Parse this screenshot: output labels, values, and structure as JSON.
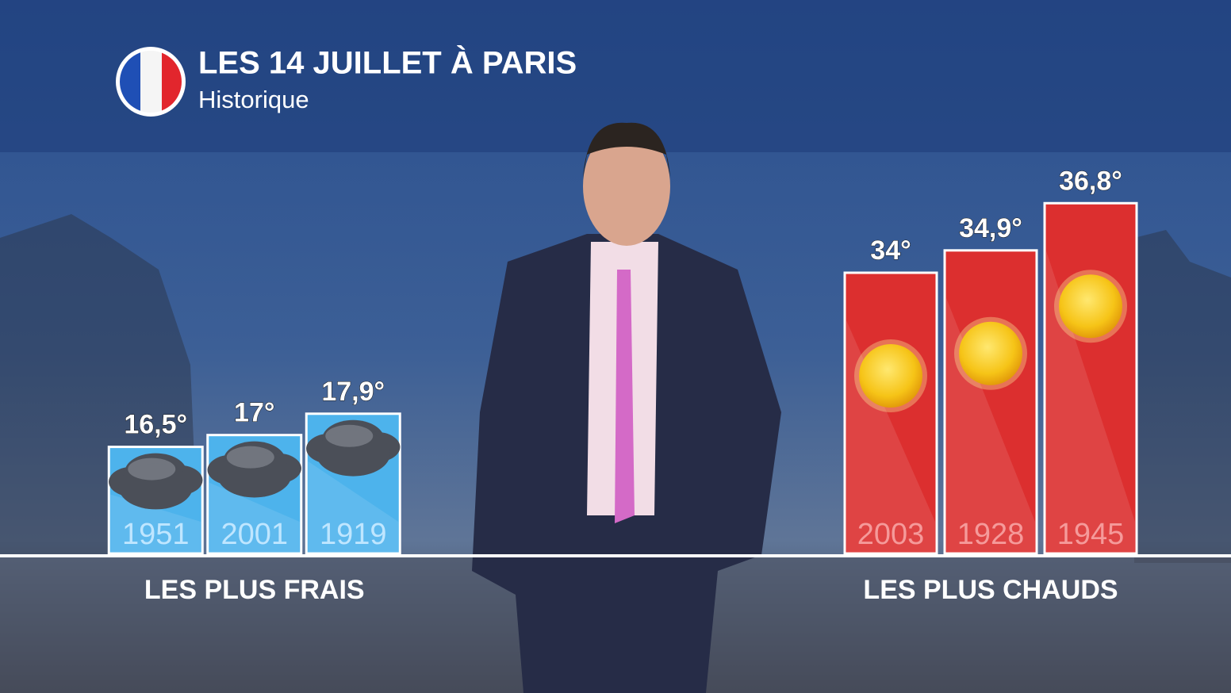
{
  "header": {
    "title": "LES 14 JUILLET À PARIS",
    "subtitle": "Historique"
  },
  "chart_data": [
    {
      "type": "bar",
      "title": "LES PLUS FRAIS",
      "categories": [
        "1951",
        "2001",
        "1919"
      ],
      "values": [
        16.5,
        17,
        17.9
      ],
      "value_labels": [
        "16,5°",
        "17°",
        "17,9°"
      ],
      "color": "#4db3ec",
      "ylim": [
        12,
        27
      ]
    },
    {
      "type": "bar",
      "title": "LES PLUS CHAUDS",
      "categories": [
        "2003",
        "1928",
        "1945"
      ],
      "values": [
        34,
        34.9,
        36.8
      ],
      "value_labels": [
        "34°",
        "34,9°",
        "36,8°"
      ],
      "color": "#dc2f2f",
      "ylim": [
        22.7,
        37
      ]
    }
  ]
}
